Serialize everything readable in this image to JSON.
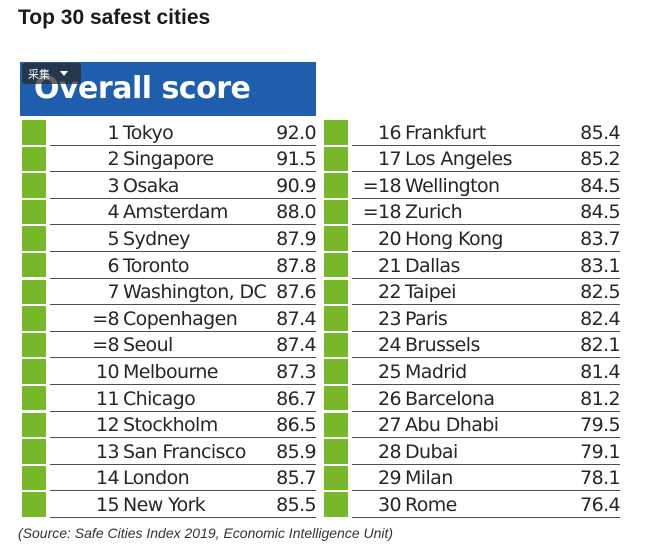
{
  "page": {
    "title": "Top 30 safest cities",
    "table_title": "Overall score",
    "badge_label": "采集",
    "source": "(Source: Safe Cities Index 2019, Economic Intelligence Unit)"
  },
  "colors": {
    "header_blue": "#1f5eae",
    "swatch_green": "#76b82a"
  },
  "left_rows": [
    {
      "rank": "1",
      "city": "Tokyo",
      "score": "92.0"
    },
    {
      "rank": "2",
      "city": "Singapore",
      "score": "91.5"
    },
    {
      "rank": "3",
      "city": "Osaka",
      "score": "90.9"
    },
    {
      "rank": "4",
      "city": "Amsterdam",
      "score": "88.0"
    },
    {
      "rank": "5",
      "city": "Sydney",
      "score": "87.9"
    },
    {
      "rank": "6",
      "city": "Toronto",
      "score": "87.8"
    },
    {
      "rank": "7",
      "city": "Washington, DC",
      "score": "87.6"
    },
    {
      "rank": "=8",
      "city": "Copenhagen",
      "score": "87.4"
    },
    {
      "rank": "=8",
      "city": "Seoul",
      "score": "87.4"
    },
    {
      "rank": "10",
      "city": "Melbourne",
      "score": "87.3"
    },
    {
      "rank": "11",
      "city": "Chicago",
      "score": "86.7"
    },
    {
      "rank": "12",
      "city": "Stockholm",
      "score": "86.5"
    },
    {
      "rank": "13",
      "city": "San Francisco",
      "score": "85.9"
    },
    {
      "rank": "14",
      "city": "London",
      "score": "85.7"
    },
    {
      "rank": "15",
      "city": "New York",
      "score": "85.5"
    }
  ],
  "right_rows": [
    {
      "rank": "16",
      "city": "Frankfurt",
      "score": "85.4"
    },
    {
      "rank": "17",
      "city": "Los Angeles",
      "score": "85.2"
    },
    {
      "rank": "=18",
      "city": "Wellington",
      "score": "84.5"
    },
    {
      "rank": "=18",
      "city": "Zurich",
      "score": "84.5"
    },
    {
      "rank": "20",
      "city": "Hong Kong",
      "score": "83.7"
    },
    {
      "rank": "21",
      "city": "Dallas",
      "score": "83.1"
    },
    {
      "rank": "22",
      "city": "Taipei",
      "score": "82.5"
    },
    {
      "rank": "23",
      "city": "Paris",
      "score": "82.4"
    },
    {
      "rank": "24",
      "city": "Brussels",
      "score": "82.1"
    },
    {
      "rank": "25",
      "city": "Madrid",
      "score": "81.4"
    },
    {
      "rank": "26",
      "city": "Barcelona",
      "score": "81.2"
    },
    {
      "rank": "27",
      "city": "Abu Dhabi",
      "score": "79.5"
    },
    {
      "rank": "28",
      "city": "Dubai",
      "score": "79.1"
    },
    {
      "rank": "29",
      "city": "Milan",
      "score": "78.1"
    },
    {
      "rank": "30",
      "city": "Rome",
      "score": "76.4"
    }
  ]
}
